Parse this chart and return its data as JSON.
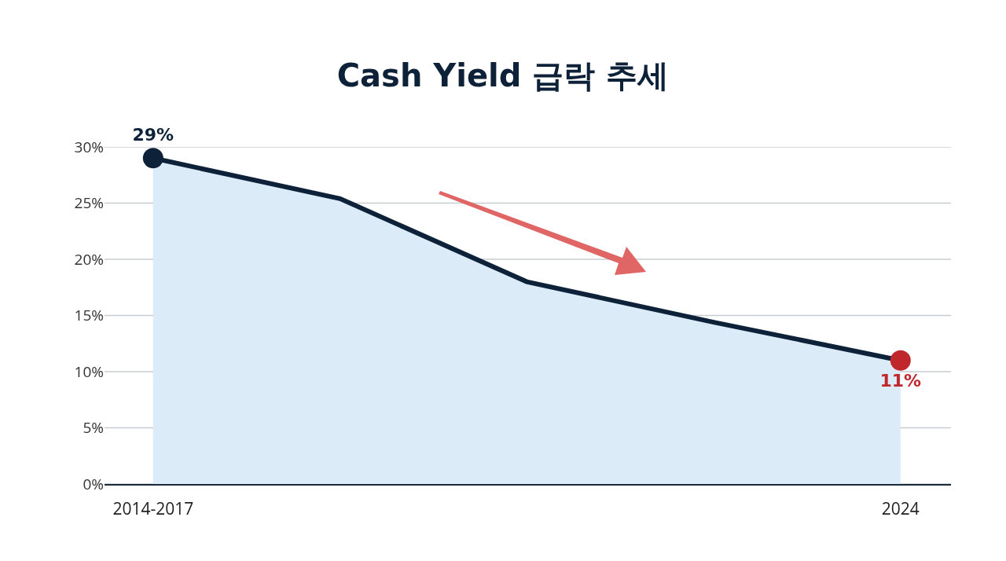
{
  "chart_data": {
    "type": "area",
    "title": "Cash Yield 급락 추세",
    "categories": [
      "2014-2017",
      null,
      null,
      null,
      "2024"
    ],
    "series": [
      {
        "color": "#0d2238",
        "values": [
          29,
          25.4,
          18,
          14.4,
          11
        ],
        "colors": [
          "#0d2238",
          null,
          null,
          null,
          "#c0272d"
        ],
        "value_labels": [
          "29%",
          null,
          null,
          null,
          "11%"
        ]
      }
    ],
    "ylim": [
      0,
      30
    ],
    "yticks": [
      {
        "value": 0,
        "label": "0%"
      },
      {
        "value": 5,
        "label": "5%"
      },
      {
        "value": 10,
        "label": "10%"
      },
      {
        "value": 15,
        "label": "15%"
      },
      {
        "value": 20,
        "label": "20%"
      },
      {
        "value": 25,
        "label": "25%"
      },
      {
        "value": 30,
        "label": "30%"
      }
    ],
    "grid": "y"
  }
}
